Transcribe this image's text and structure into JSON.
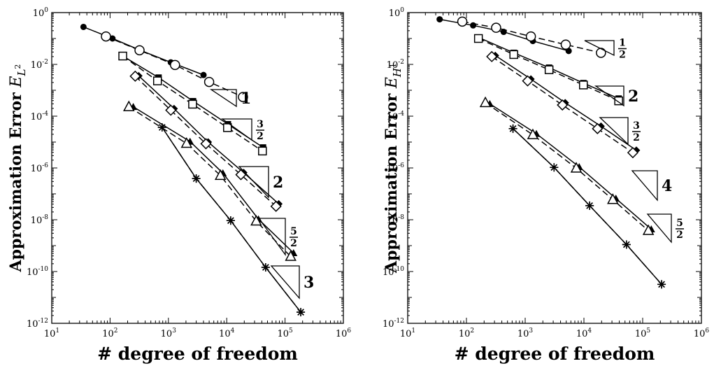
{
  "chart_data": [
    {
      "type": "line",
      "xscale": "log",
      "yscale": "log",
      "xlim": [
        10,
        1000000
      ],
      "ylim": [
        1e-12,
        1
      ],
      "xlabel": "# degree of freedom",
      "ylabel": "Approximation Error",
      "ylabel_symbol": "E",
      "ylabel_subscript": "L",
      "ylabel_subscript_power": "2",
      "xticks": [
        {
          "value": 10,
          "base": "10",
          "exp": "1"
        },
        {
          "value": 100,
          "base": "10",
          "exp": "2"
        },
        {
          "value": 1000,
          "base": "10",
          "exp": "3"
        },
        {
          "value": 10000,
          "base": "10",
          "exp": "4"
        },
        {
          "value": 100000,
          "base": "10",
          "exp": "5"
        },
        {
          "value": 1000000,
          "base": "10",
          "exp": "6"
        }
      ],
      "yticks": [
        {
          "value": 1,
          "base": "10",
          "exp": "0"
        },
        {
          "value": 0.01,
          "base": "10",
          "exp": "-2"
        },
        {
          "value": 0.0001,
          "base": "10",
          "exp": "-4"
        },
        {
          "value": 1e-06,
          "base": "10",
          "exp": "-6"
        },
        {
          "value": 1e-08,
          "base": "10",
          "exp": "-8"
        },
        {
          "value": 1e-10,
          "base": "10",
          "exp": "-10"
        },
        {
          "value": 1e-12,
          "base": "10",
          "exp": "-12"
        }
      ],
      "series": [
        {
          "marker": "filled-circle",
          "line": "solid",
          "x": [
            35,
            110,
            330,
            1100,
            4000
          ],
          "y": [
            0.28,
            0.1,
            0.035,
            0.012,
            0.0039
          ]
        },
        {
          "marker": "open-circle",
          "line": "dashed",
          "x": [
            85,
            320,
            1300,
            5000,
            19000
          ],
          "y": [
            0.12,
            0.035,
            0.0095,
            0.0021,
            0.00055
          ]
        },
        {
          "marker": "filled-square",
          "line": "solid",
          "x": [
            165,
            680,
            2650,
            10500,
            42000
          ],
          "y": [
            0.021,
            0.0031,
            0.00038,
            4.9e-05,
            6.2e-06
          ]
        },
        {
          "marker": "open-square",
          "line": "dashed",
          "x": [
            165,
            650,
            2600,
            10300,
            41000
          ],
          "y": [
            0.021,
            0.0023,
            0.00029,
            3.6e-05,
            4.5e-06
          ]
        },
        {
          "marker": "filled-diamond",
          "line": "solid",
          "x": [
            310,
            1250,
            4800,
            19500,
            78000
          ],
          "y": [
            0.0036,
            0.000195,
            1e-05,
            6.6e-07,
            4.1e-08
          ]
        },
        {
          "marker": "open-diamond",
          "line": "dashed",
          "x": [
            270,
            1100,
            4400,
            17500,
            70000
          ],
          "y": [
            0.0035,
            0.00017,
            8.6e-06,
            5.5e-07,
            3.3e-08
          ]
        },
        {
          "marker": "filled-triangle",
          "line": "solid",
          "x": [
            250,
            2350,
            8600,
            35000,
            140000
          ],
          "y": [
            0.00023,
            1.05e-05,
            6.3e-07,
            1.05e-08,
            5.2e-10
          ]
        },
        {
          "marker": "open-triangle",
          "line": "dashed",
          "x": [
            210,
            2050,
            7800,
            32000,
            125000
          ],
          "y": [
            0.00023,
            8.8e-06,
            5.1e-07,
            8.8e-09,
            3.8e-10
          ]
        },
        {
          "marker": "asterisk-solid",
          "line": "solid",
          "x": [
            780,
            3000,
            11700,
            46500,
            186000
          ],
          "y": [
            3.7e-05,
            3.9e-07,
            9.3e-09,
            1.45e-10,
            2.7e-12
          ]
        },
        {
          "marker": "asterisk-dashed",
          "line": "dashed",
          "x": [
            780,
            3000,
            11700,
            46500,
            186000
          ],
          "y": [
            3.7e-05,
            3.9e-07,
            9.3e-09,
            1.45e-10,
            2.7e-12
          ]
        }
      ],
      "slope_labels": [
        {
          "kind": "integer",
          "text": "1"
        },
        {
          "kind": "fraction",
          "num": "3",
          "den": "2"
        },
        {
          "kind": "integer",
          "text": "2"
        },
        {
          "kind": "fraction",
          "num": "5",
          "den": "2"
        },
        {
          "kind": "integer",
          "text": "3"
        }
      ]
    },
    {
      "type": "line",
      "xscale": "log",
      "yscale": "log",
      "xlim": [
        10,
        1000000
      ],
      "ylim": [
        1e-12,
        1
      ],
      "xlabel": "# degree of freedom",
      "ylabel": "Approximation Error",
      "ylabel_symbol": "E",
      "ylabel_subscript": "H",
      "ylabel_subscript_power": "1",
      "xticks": [
        {
          "value": 10,
          "base": "10",
          "exp": "1"
        },
        {
          "value": 100,
          "base": "10",
          "exp": "2"
        },
        {
          "value": 1000,
          "base": "10",
          "exp": "3"
        },
        {
          "value": 10000,
          "base": "10",
          "exp": "4"
        },
        {
          "value": 100000,
          "base": "10",
          "exp": "5"
        },
        {
          "value": 1000000,
          "base": "10",
          "exp": "6"
        }
      ],
      "yticks": [
        {
          "value": 1,
          "base": "10",
          "exp": "0"
        },
        {
          "value": 0.01,
          "base": "10",
          "exp": "-2"
        },
        {
          "value": 0.0001,
          "base": "10",
          "exp": "-4"
        },
        {
          "value": 1e-06,
          "base": "10",
          "exp": "-6"
        },
        {
          "value": 1e-08,
          "base": "10",
          "exp": "-8"
        },
        {
          "value": 1e-10,
          "base": "10",
          "exp": "-10"
        },
        {
          "value": 1e-12,
          "base": "10",
          "exp": "-12"
        }
      ],
      "series": [
        {
          "marker": "filled-circle",
          "line": "solid",
          "x": [
            35,
            130,
            430,
            1350,
            5500
          ],
          "y": [
            0.55,
            0.32,
            0.18,
            0.08,
            0.033
          ]
        },
        {
          "marker": "open-circle",
          "line": "dashed",
          "x": [
            85,
            320,
            1250,
            4900,
            19500
          ],
          "y": [
            0.45,
            0.26,
            0.12,
            0.058,
            0.028
          ]
        },
        {
          "marker": "filled-square",
          "line": "solid",
          "x": [
            160,
            640,
            2550,
            9800,
            39000
          ],
          "y": [
            0.11,
            0.028,
            0.0075,
            0.0019,
            0.00048
          ]
        },
        {
          "marker": "open-square",
          "line": "dashed",
          "x": [
            160,
            640,
            2550,
            9800,
            39000
          ],
          "y": [
            0.1,
            0.024,
            0.0062,
            0.0016,
            0.00039
          ]
        },
        {
          "marker": "filled-diamond",
          "line": "solid",
          "x": [
            310,
            1250,
            4800,
            19500,
            78000
          ],
          "y": [
            0.022,
            0.0027,
            0.00033,
            4.1e-05,
            4.8e-06
          ]
        },
        {
          "marker": "open-diamond",
          "line": "dashed",
          "x": [
            270,
            1100,
            4300,
            17000,
            68000
          ],
          "y": [
            0.02,
            0.0023,
            0.00027,
            3.3e-05,
            3.9e-06
          ]
        },
        {
          "marker": "filled-triangle",
          "line": "solid",
          "x": [
            250,
            1550,
            8300,
            35000,
            140000
          ],
          "y": [
            0.0003,
            2.1e-05,
            1.1e-06,
            6.6e-08,
            4.3e-09
          ]
        },
        {
          "marker": "open-triangle",
          "line": "dashed",
          "x": [
            210,
            1350,
            7400,
            31000,
            125000
          ],
          "y": [
            0.00033,
            1.9e-05,
            9.8e-07,
            6e-08,
            3.8e-09
          ]
        },
        {
          "marker": "asterisk-solid",
          "line": "solid",
          "x": [
            620,
            3100,
            12500,
            53000,
            210000
          ],
          "y": [
            3.3e-05,
            1.05e-06,
            3.5e-08,
            1.1e-09,
            3.2e-11
          ]
        },
        {
          "marker": "asterisk-dashed",
          "line": "dashed",
          "x": [
            620,
            3100,
            12500,
            53000,
            210000
          ],
          "y": [
            3.3e-05,
            1.05e-06,
            3.5e-08,
            1.1e-09,
            3.2e-11
          ]
        }
      ],
      "slope_labels": [
        {
          "kind": "fraction",
          "num": "1",
          "den": "2"
        },
        {
          "kind": "integer",
          "text": "2"
        },
        {
          "kind": "fraction",
          "num": "3",
          "den": "2"
        },
        {
          "kind": "integer",
          "text": "4"
        },
        {
          "kind": "fraction",
          "num": "5",
          "den": "2"
        }
      ]
    }
  ]
}
